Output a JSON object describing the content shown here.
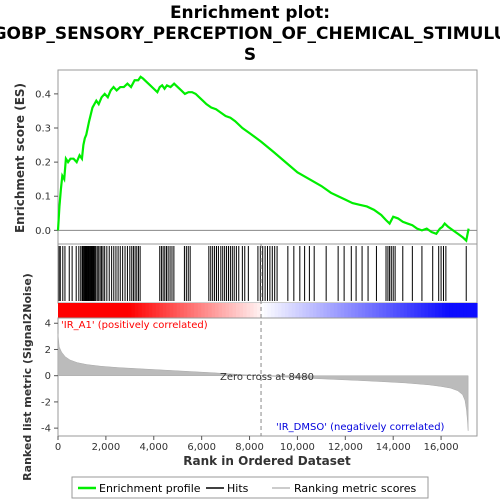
{
  "chart_data": {
    "type": "line",
    "title_lines": [
      "Enrichment plot:",
      "GOBP_SENSORY_PERCEPTION_OF_CHEMICAL_STIMULU",
      "S"
    ],
    "ylabel_es": "Enrichment score (ES)",
    "ylabel_metric": "Ranked list metric (Signal2Noise)",
    "xlabel": "Rank in Ordered Dataset",
    "x_range": [
      0,
      17500
    ],
    "x_ticks": [
      0,
      2000,
      4000,
      6000,
      8000,
      10000,
      12000,
      14000,
      16000
    ],
    "x_tick_labels": [
      "0",
      "2,000",
      "4,000",
      "6,000",
      "8,000",
      "10,000",
      "12,000",
      "14,000",
      "16,000"
    ],
    "es_ylim": [
      -0.04,
      0.47
    ],
    "es_ticks": [
      0.0,
      0.1,
      0.2,
      0.3,
      0.4
    ],
    "es_tick_labels": [
      "0.0",
      "0.1",
      "0.2",
      "0.3",
      "0.4"
    ],
    "metric_ylim": [
      -4.6,
      4.4
    ],
    "metric_ticks": [
      -4,
      -2,
      0,
      2,
      4
    ],
    "metric_tick_labels": [
      "-4",
      "-2",
      "0",
      "2",
      "4"
    ],
    "series": [
      {
        "name": "Enrichment profile",
        "color": "#00ee00",
        "x": [
          0,
          60,
          120,
          180,
          260,
          330,
          420,
          520,
          650,
          780,
          900,
          1000,
          1060,
          1120,
          1180,
          1240,
          1300,
          1370,
          1440,
          1520,
          1600,
          1700,
          1820,
          1950,
          2080,
          2200,
          2320,
          2450,
          2600,
          2750,
          2900,
          3050,
          3200,
          3350,
          3450,
          3550,
          3700,
          3850,
          4000,
          4150,
          4250,
          4350,
          4450,
          4550,
          4700,
          4850,
          5000,
          5150,
          5300,
          5450,
          5600,
          5750,
          5900,
          6050,
          6200,
          6400,
          6600,
          6800,
          7000,
          7200,
          7400,
          7700,
          8000,
          8480,
          9000,
          9500,
          10000,
          10500,
          11000,
          11400,
          11700,
          12000,
          12300,
          12600,
          12900,
          13200,
          13500,
          13700,
          13850,
          14000,
          14200,
          14400,
          14600,
          14800,
          15000,
          15200,
          15400,
          15600,
          15800,
          15950,
          16050,
          16150,
          16300,
          16500,
          16700,
          16900,
          17050,
          17150
        ],
        "y": [
          0.0,
          0.07,
          0.12,
          0.16,
          0.15,
          0.21,
          0.2,
          0.21,
          0.21,
          0.2,
          0.22,
          0.21,
          0.25,
          0.27,
          0.28,
          0.3,
          0.32,
          0.34,
          0.36,
          0.37,
          0.38,
          0.37,
          0.39,
          0.4,
          0.39,
          0.41,
          0.42,
          0.41,
          0.42,
          0.42,
          0.43,
          0.42,
          0.44,
          0.44,
          0.45,
          0.445,
          0.435,
          0.425,
          0.415,
          0.405,
          0.42,
          0.425,
          0.415,
          0.425,
          0.42,
          0.43,
          0.42,
          0.41,
          0.4,
          0.405,
          0.405,
          0.4,
          0.39,
          0.38,
          0.37,
          0.36,
          0.355,
          0.345,
          0.335,
          0.33,
          0.32,
          0.3,
          0.285,
          0.26,
          0.23,
          0.2,
          0.17,
          0.15,
          0.13,
          0.11,
          0.1,
          0.09,
          0.08,
          0.075,
          0.07,
          0.06,
          0.045,
          0.03,
          0.02,
          0.04,
          0.035,
          0.025,
          0.02,
          0.015,
          0.005,
          0.0,
          0.005,
          -0.005,
          -0.01,
          0.005,
          0.01,
          0.02,
          0.01,
          0.0,
          -0.01,
          -0.02,
          -0.03,
          0.005
        ]
      }
    ],
    "hits": [
      45,
      95,
      200,
      290,
      470,
      590,
      760,
      870,
      950,
      1010,
      1040,
      1080,
      1110,
      1140,
      1170,
      1200,
      1230,
      1260,
      1290,
      1320,
      1350,
      1380,
      1410,
      1440,
      1470,
      1500,
      1540,
      1580,
      1640,
      1700,
      1760,
      1820,
      1880,
      1950,
      2040,
      2140,
      2240,
      2330,
      2420,
      2510,
      2600,
      2700,
      2800,
      2900,
      3000,
      3080,
      3150,
      3220,
      3290,
      3360,
      3430,
      4250,
      4320,
      4390,
      4460,
      4530,
      4600,
      4680,
      4760,
      4840,
      5280,
      5360,
      5440,
      5520,
      6300,
      6380,
      6460,
      6540,
      6620,
      6700,
      6800,
      6880,
      6960,
      7040,
      7120,
      7200,
      7280,
      7360,
      7450,
      7550,
      7700,
      7800,
      7950,
      8350,
      8450,
      8550,
      8650,
      8750,
      8850,
      8950,
      9050,
      9150,
      9600,
      9850,
      10100,
      10300,
      10500,
      10700,
      11200,
      11700,
      11950,
      12250,
      12450,
      12700,
      12950,
      13300,
      13700,
      13780,
      13850,
      13920,
      14000,
      14080,
      14400,
      14800,
      15200,
      15650,
      15900,
      16000,
      16100,
      16200,
      17050
    ],
    "metric": {
      "x": [
        0,
        50,
        150,
        300,
        500,
        800,
        1200,
        1800,
        2500,
        3500,
        4500,
        5500,
        6500,
        7500,
        8480,
        9500,
        10500,
        11500,
        12500,
        13500,
        14500,
        15500,
        16000,
        16400,
        16700,
        16900,
        17000,
        17060,
        17100,
        17130
      ],
      "y": [
        3.2,
        2.2,
        1.8,
        1.45,
        1.2,
        1.0,
        0.85,
        0.72,
        0.62,
        0.52,
        0.42,
        0.32,
        0.22,
        0.1,
        0.0,
        -0.1,
        -0.2,
        -0.28,
        -0.36,
        -0.45,
        -0.55,
        -0.7,
        -0.82,
        -0.95,
        -1.15,
        -1.45,
        -1.9,
        -2.6,
        -3.4,
        -4.2
      ]
    },
    "zero_cross_x": 8480,
    "annotations": {
      "zero_cross": "Zero cross at 8480",
      "positive": "'IR_A1' (positively correlated)",
      "negative": "'IR_DMSO' (negatively correlated)"
    },
    "legend": {
      "placement": "bottom",
      "items": [
        "Enrichment profile",
        "Hits",
        "Ranking metric scores"
      ]
    },
    "colors": {
      "es_line": "#00ee00",
      "hit": "#000000",
      "metric_fill": "#bbbbbb",
      "positive_text": "#ff0000",
      "negative_text": "#0000dd",
      "bar_positive": "#ff0000",
      "bar_negative": "#0000ff"
    }
  }
}
